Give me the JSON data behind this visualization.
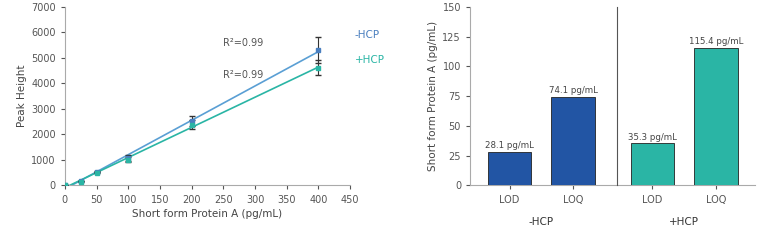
{
  "line_x": [
    0,
    25,
    50,
    100,
    200,
    400
  ],
  "hcp_minus_y": [
    0,
    175,
    535,
    1075,
    2520,
    5300
  ],
  "hcp_minus_err": [
    0,
    10,
    20,
    120,
    200,
    500
  ],
  "hcp_plus_y": [
    0,
    150,
    490,
    1010,
    2380,
    4620
  ],
  "hcp_plus_err": [
    0,
    10,
    20,
    100,
    180,
    300
  ],
  "color_minus": "#4a7fbf",
  "color_plus": "#2ab5a5",
  "line_color_minus": "#5a9fd4",
  "line_color_plus": "#2ab5a5",
  "r2_minus": "R²=0.99",
  "r2_plus": "R²=0.99",
  "xlabel_line": "Short form Protein A (pg/mL)",
  "ylabel_line": "Peak Height",
  "xlim_line": [
    0,
    450
  ],
  "ylim_line": [
    0,
    7000
  ],
  "bar_categories": [
    "LOD",
    "LOQ"
  ],
  "bar_minus_values": [
    28.1,
    74.1
  ],
  "bar_plus_values": [
    35.3,
    115.4
  ],
  "bar_minus_color": "#2255a4",
  "bar_plus_color": "#2ab5a5",
  "bar_minus_labels": [
    "28.1 pg/mL",
    "74.1 pg/mL"
  ],
  "bar_plus_labels": [
    "35.3 pg/mL",
    "115.4 pg/mL"
  ],
  "ylabel_bar": "Short form Protein A (pg/mL)",
  "ylim_bar": [
    0,
    150
  ],
  "group_minus_label": "-HCP",
  "group_plus_label": "+HCP",
  "text_color_minus": "#4a7fbf",
  "text_color_plus": "#2ab5a5"
}
